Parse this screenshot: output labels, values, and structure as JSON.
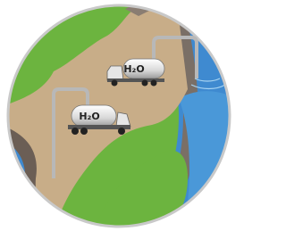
{
  "trucks": [
    {
      "label": "H₂O"
    },
    {
      "label": "H₂O"
    }
  ]
}
